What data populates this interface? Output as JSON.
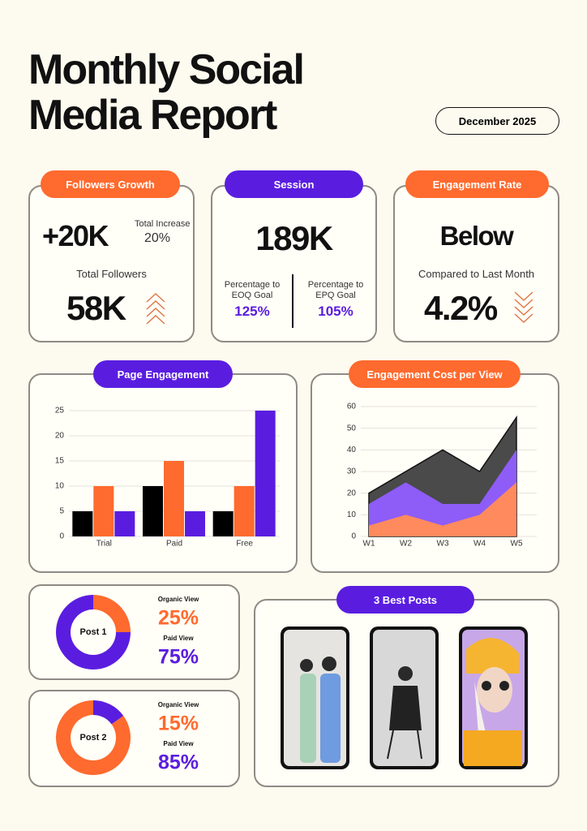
{
  "header": {
    "title": "Monthly Social Media Report",
    "date": "December 2025"
  },
  "followers": {
    "title": "Followers Growth",
    "increase": "+20K",
    "increase_label": "Total Increase",
    "increase_pct": "20%",
    "total_label": "Total Followers",
    "total": "58K"
  },
  "session": {
    "title": "Session",
    "value": "189K",
    "eoq_label": "Percentage to EOQ Goal",
    "eoq_value": "125%",
    "epq_label": "Percentage to EPQ Goal",
    "epq_value": "105%"
  },
  "engagement": {
    "title": "Engagement Rate",
    "status": "Below",
    "compare_label": "Compared to Last Month",
    "value": "4.2%"
  },
  "posts": {
    "title": "3 Best Posts"
  },
  "chart_data": [
    {
      "type": "bar",
      "title": "Page Engagement",
      "categories": [
        "Trial",
        "Paid",
        "Free"
      ],
      "series": [
        {
          "color": "#000000",
          "values": [
            5,
            10,
            5
          ]
        },
        {
          "color": "#ff6a2e",
          "values": [
            10,
            15,
            10
          ]
        },
        {
          "color": "#5a1de0",
          "values": [
            5,
            5,
            25
          ]
        }
      ],
      "ylim": [
        0,
        25
      ],
      "yticks": [
        0,
        5,
        10,
        15,
        20,
        25
      ],
      "grid": true
    },
    {
      "type": "area",
      "title": "Engagement Cost per View",
      "categories": [
        "W1",
        "W2",
        "W3",
        "W4",
        "W5"
      ],
      "series": [
        {
          "color": "#4a4a4a",
          "values": [
            20,
            30,
            40,
            30,
            55
          ]
        },
        {
          "color": "#8e5cf7",
          "values": [
            15,
            25,
            15,
            15,
            40
          ]
        },
        {
          "color": "#ff8a5e",
          "values": [
            5,
            10,
            5,
            10,
            25
          ]
        }
      ],
      "ylim": [
        0,
        60
      ],
      "yticks": [
        0,
        10,
        20,
        30,
        40,
        50,
        60
      ],
      "grid": true
    },
    {
      "type": "pie",
      "title": "Post 1",
      "categories": [
        "Organic View",
        "Paid View"
      ],
      "values": [
        25,
        75
      ],
      "value_labels": [
        "25%",
        "75%"
      ],
      "colors": [
        "#ff6a2e",
        "#5a1de0"
      ]
    },
    {
      "type": "pie",
      "title": "Post 2",
      "categories": [
        "Organic View",
        "Paid View"
      ],
      "values": [
        15,
        85
      ],
      "value_labels": [
        "15%",
        "85%"
      ],
      "colors": [
        "#5a1de0",
        "#ff6a2e"
      ]
    }
  ]
}
